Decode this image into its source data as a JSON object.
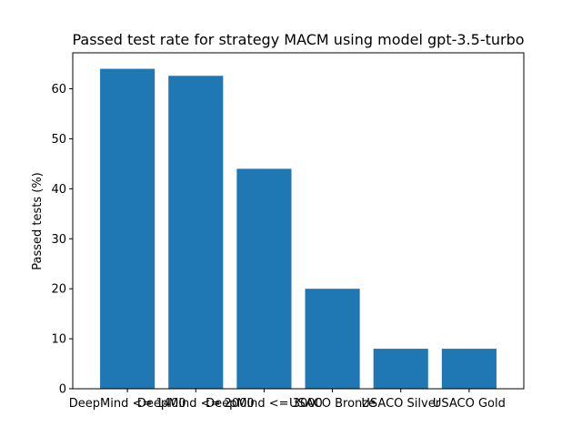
{
  "chart_data": {
    "type": "bar",
    "title": "Passed test rate for strategy MACM using model gpt-3.5-turbo",
    "xlabel": "",
    "ylabel": "Passed tests (%)",
    "categories": [
      "DeepMind <= 1400",
      "DeepMind <= 2000",
      "DeepMind <= 3000",
      "USACO Bronze",
      "USACO Silver",
      "USACO Gold"
    ],
    "values": [
      64,
      62.6,
      44,
      20,
      8,
      8
    ],
    "ylim": [
      0,
      67.2
    ],
    "yticks": [
      0,
      10,
      20,
      30,
      40,
      50,
      60
    ],
    "grid": false,
    "bar_color": "#1f77b4"
  }
}
